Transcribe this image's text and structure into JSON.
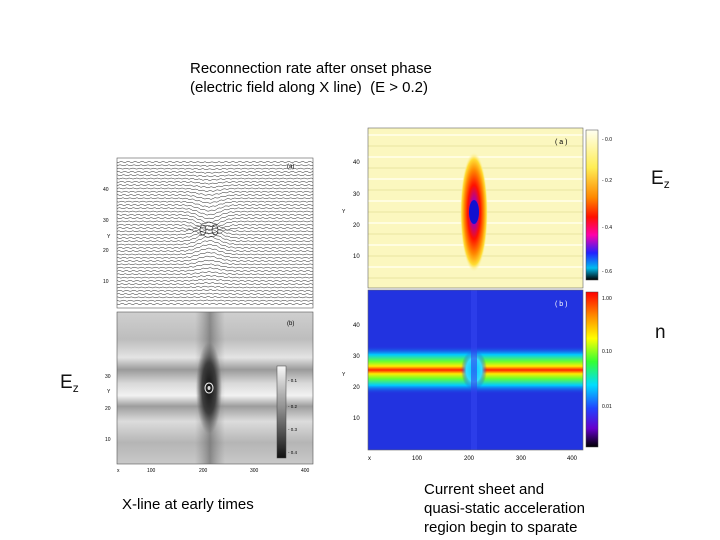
{
  "title": {
    "line1": "Reconnection rate after onset phase",
    "line2": "(electric field along X line)  (E > 0.2)"
  },
  "left_figure": {
    "panel_a": {
      "label": "(a)",
      "y_label": "Y",
      "y_ticks": [
        "40",
        "30",
        "20",
        "10"
      ]
    },
    "panel_b": {
      "label": "(b)",
      "y_label": "Y",
      "y_ticks": [
        "30",
        "20",
        "10"
      ],
      "x_label": "x",
      "x_ticks": [
        "100",
        "200",
        "300",
        "400"
      ],
      "colorbar_ticks": [
        "- 0.1",
        "- 0.2",
        "- 0.3",
        "- 0.4"
      ]
    },
    "caption": "X-line at early times"
  },
  "right_figure": {
    "panel_a": {
      "label": "( a )",
      "y_label": "Y",
      "y_ticks": [
        "40",
        "30",
        "20",
        "10"
      ],
      "colorbar_ticks": [
        "- 0.0",
        "- 0.2",
        "- 0.4",
        "- 0.6"
      ],
      "side_label_main": "E",
      "side_label_sub": "z"
    },
    "panel_b": {
      "label": "( b )",
      "y_label": "Y",
      "y_ticks": [
        "40",
        "30",
        "20",
        "10"
      ],
      "x_label": "x",
      "x_ticks": [
        "100",
        "200",
        "300",
        "400"
      ],
      "colorbar_ticks": [
        "1.00",
        "0.10",
        "0.01"
      ],
      "side_label": "n"
    },
    "caption_line1": "Current sheet and",
    "caption_line2": "quasi-static acceleration",
    "caption_line3": "region begin to sparate"
  },
  "left_side_label_main": "E",
  "left_side_label_sub": "z",
  "colors": {
    "field_yellow": "#fbf7bf",
    "field_blue": "#2233e0",
    "sheet_red": "#e8201a",
    "text_dark": "#111111"
  }
}
